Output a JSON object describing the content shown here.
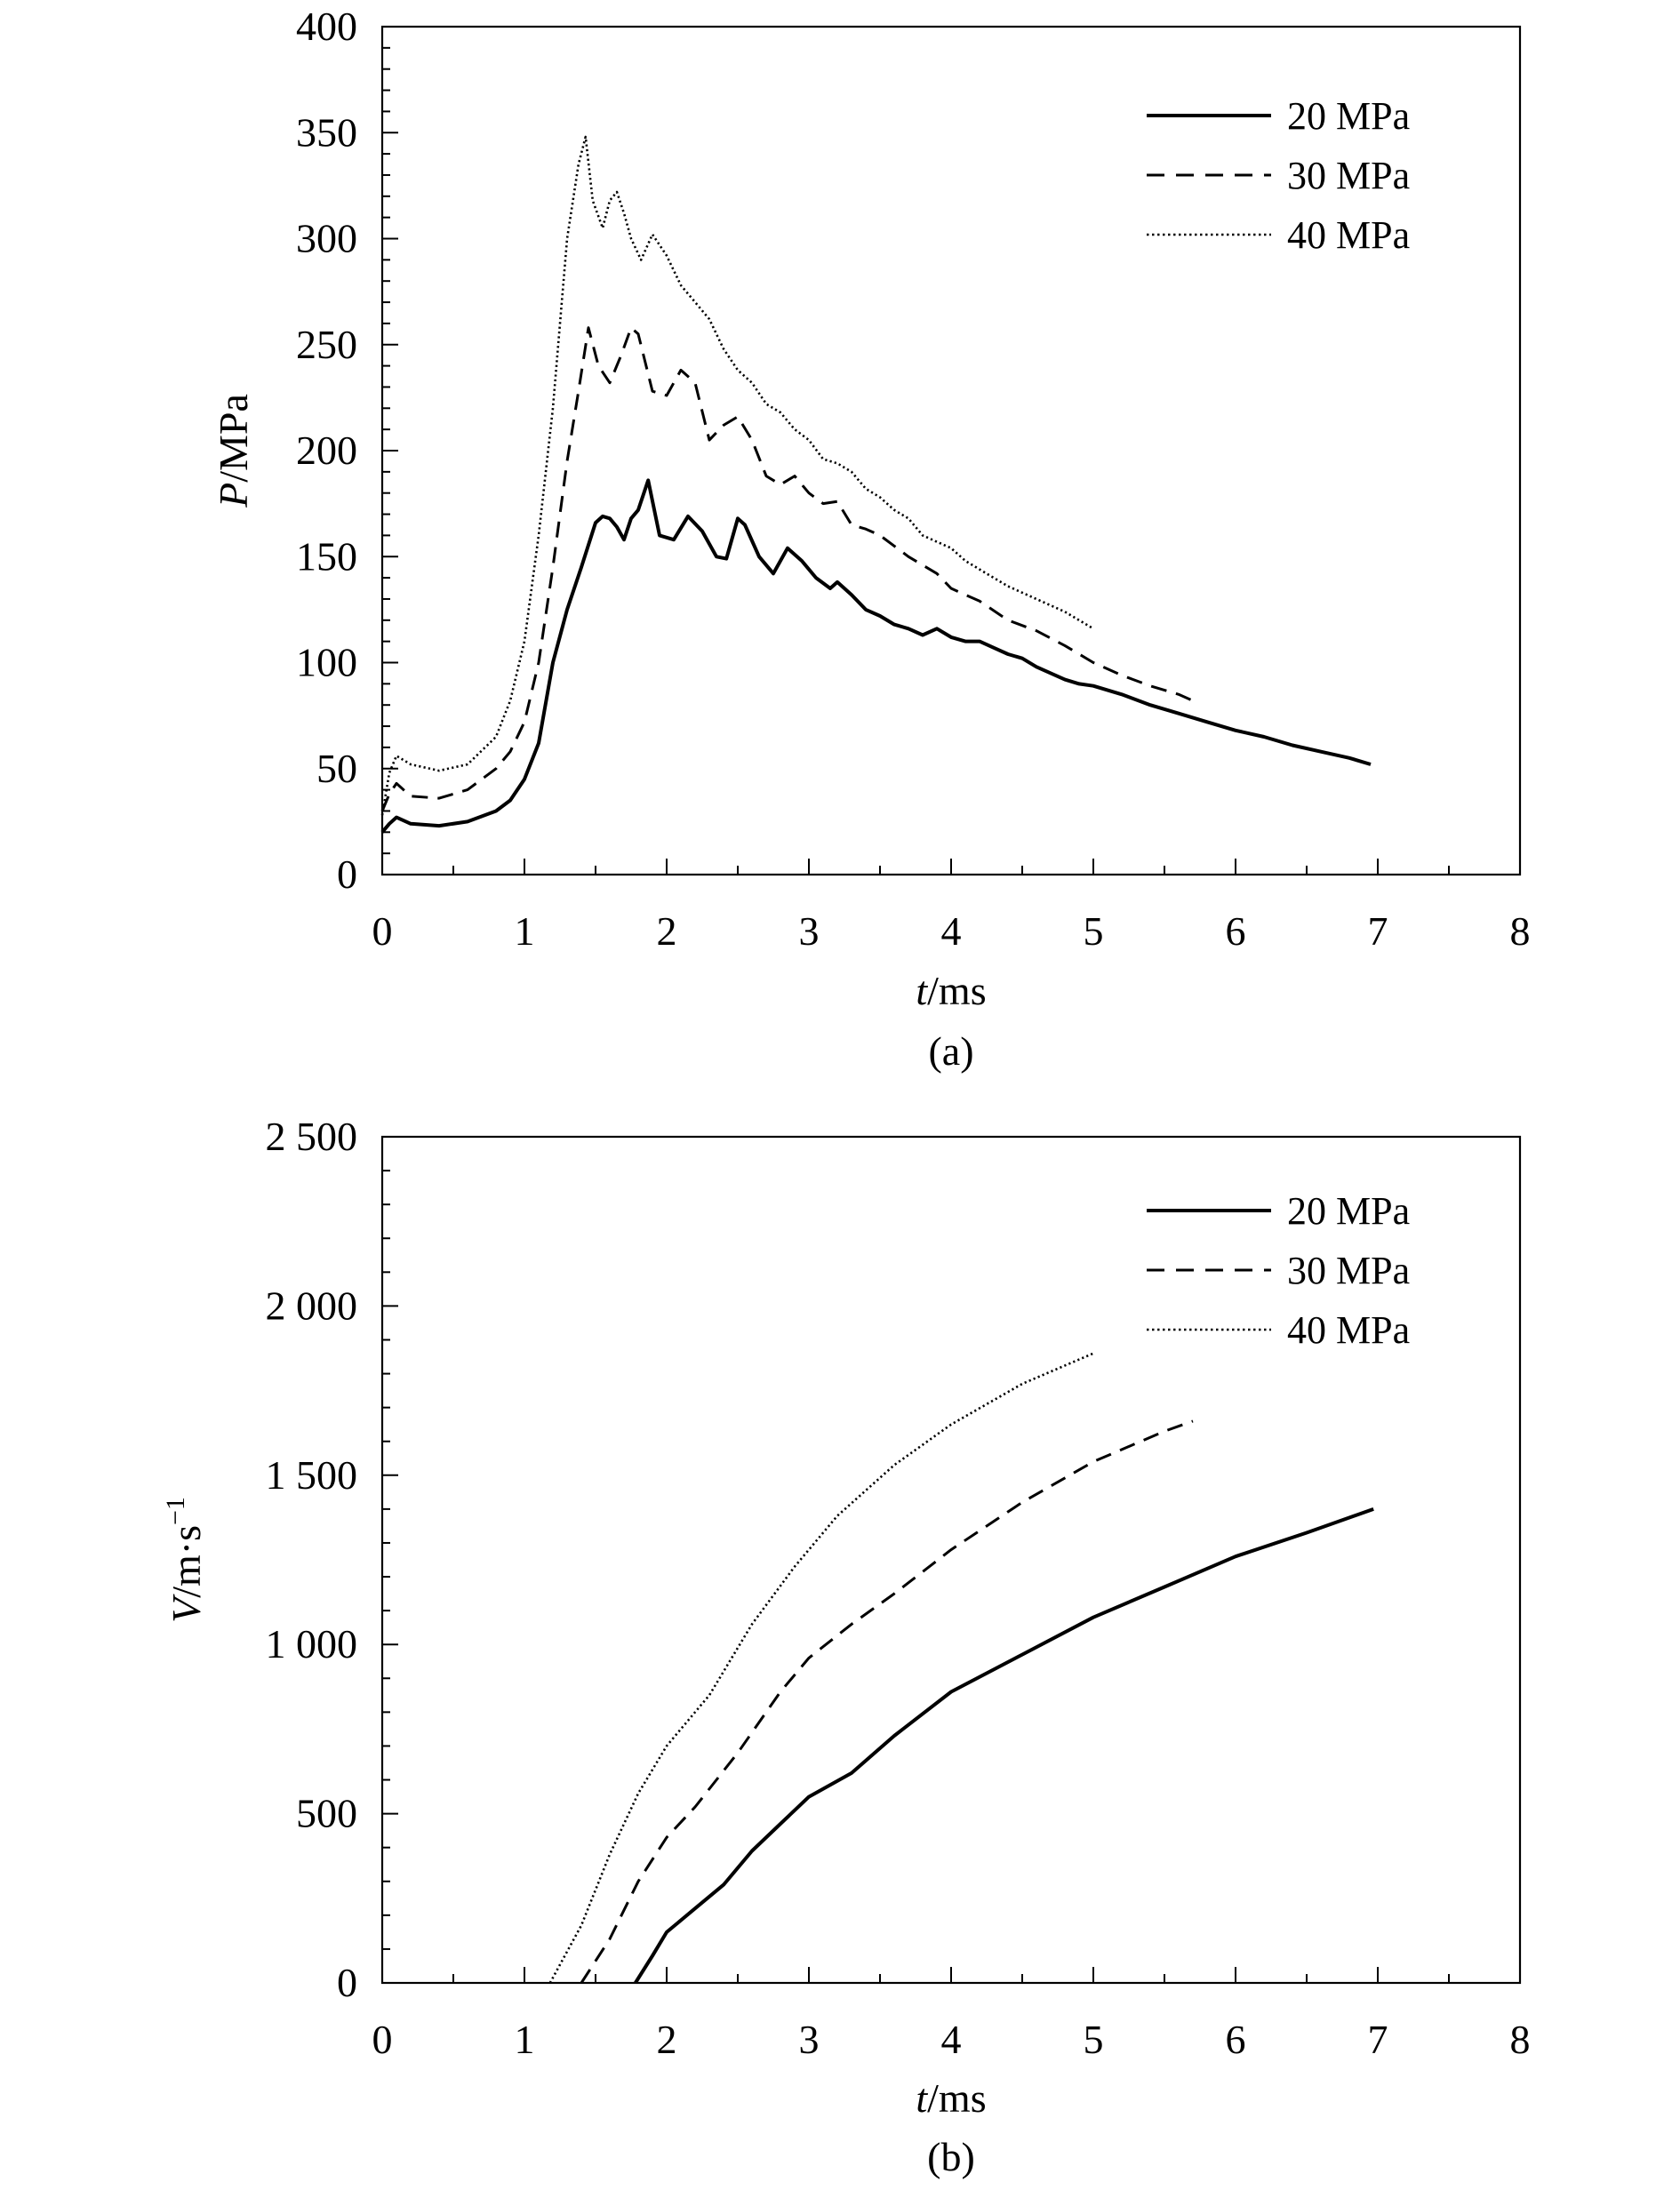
{
  "chart_data": [
    {
      "type": "line",
      "panel_label": "(a)",
      "title": "",
      "xlabel": {
        "var": "t",
        "unit": "/ms"
      },
      "ylabel": {
        "var": "P",
        "unit": "/MPa"
      },
      "xlim": [
        0,
        8
      ],
      "ylim": [
        0,
        400
      ],
      "xticks": [
        0,
        1,
        2,
        3,
        4,
        5,
        6,
        7,
        8
      ],
      "xtick_labels": [
        "0",
        "1",
        "2",
        "3",
        "4",
        "5",
        "6",
        "7",
        "8"
      ],
      "yticks": [
        0,
        50,
        100,
        150,
        200,
        250,
        300,
        350,
        400
      ],
      "ytick_labels": [
        "0",
        "50",
        "100",
        "150",
        "200",
        "250",
        "300",
        "350",
        "400"
      ],
      "grid": false,
      "legend_position": "top-right",
      "series": [
        {
          "name": "20 MPa",
          "style": "solid",
          "x": [
            0,
            0.05,
            0.1,
            0.2,
            0.4,
            0.6,
            0.8,
            0.9,
            1.0,
            1.1,
            1.2,
            1.3,
            1.4,
            1.5,
            1.55,
            1.6,
            1.65,
            1.7,
            1.75,
            1.8,
            1.87,
            1.95,
            2.05,
            2.15,
            2.25,
            2.35,
            2.42,
            2.5,
            2.55,
            2.65,
            2.75,
            2.85,
            2.95,
            3.05,
            3.15,
            3.2,
            3.3,
            3.4,
            3.5,
            3.6,
            3.7,
            3.8,
            3.9,
            4.0,
            4.1,
            4.2,
            4.3,
            4.4,
            4.5,
            4.6,
            4.7,
            4.8,
            4.9,
            5.0,
            5.2,
            5.4,
            5.6,
            5.8,
            6.0,
            6.2,
            6.4,
            6.6,
            6.8,
            6.95
          ],
          "y": [
            20,
            24,
            27,
            24,
            23,
            25,
            30,
            35,
            45,
            62,
            100,
            125,
            145,
            166,
            169,
            168,
            164,
            158,
            168,
            172,
            186,
            160,
            158,
            169,
            162,
            150,
            149,
            168,
            165,
            150,
            142,
            154,
            148,
            140,
            135,
            138,
            132,
            125,
            122,
            118,
            116,
            113,
            116,
            112,
            110,
            110,
            107,
            104,
            102,
            98,
            95,
            92,
            90,
            89,
            85,
            80,
            76,
            72,
            68,
            65,
            61,
            58,
            55,
            52
          ]
        },
        {
          "name": "30 MPa",
          "style": "dashed",
          "x": [
            0,
            0.05,
            0.1,
            0.2,
            0.4,
            0.6,
            0.8,
            0.9,
            1.0,
            1.1,
            1.2,
            1.3,
            1.38,
            1.45,
            1.52,
            1.6,
            1.68,
            1.75,
            1.8,
            1.9,
            2.0,
            2.1,
            2.2,
            2.3,
            2.4,
            2.5,
            2.6,
            2.7,
            2.8,
            2.9,
            3.0,
            3.1,
            3.2,
            3.3,
            3.4,
            3.5,
            3.6,
            3.7,
            3.8,
            3.9,
            4.0,
            4.1,
            4.2,
            4.4,
            4.6,
            4.8,
            5.0,
            5.2,
            5.4,
            5.6,
            5.7
          ],
          "y": [
            30,
            38,
            43,
            37,
            36,
            40,
            50,
            58,
            72,
            100,
            145,
            195,
            228,
            258,
            240,
            232,
            245,
            258,
            255,
            228,
            226,
            238,
            232,
            205,
            212,
            216,
            205,
            188,
            184,
            188,
            180,
            175,
            176,
            165,
            163,
            160,
            155,
            150,
            146,
            142,
            135,
            132,
            129,
            120,
            115,
            108,
            100,
            94,
            89,
            85,
            82
          ]
        },
        {
          "name": "40 MPa",
          "style": "dotted",
          "x": [
            0,
            0.05,
            0.1,
            0.2,
            0.4,
            0.6,
            0.8,
            0.9,
            1.0,
            1.1,
            1.2,
            1.3,
            1.38,
            1.43,
            1.48,
            1.55,
            1.6,
            1.65,
            1.7,
            1.75,
            1.82,
            1.9,
            2.0,
            2.1,
            2.2,
            2.3,
            2.4,
            2.5,
            2.6,
            2.7,
            2.8,
            2.9,
            3.0,
            3.1,
            3.2,
            3.3,
            3.4,
            3.5,
            3.6,
            3.7,
            3.8,
            3.9,
            4.0,
            4.1,
            4.2,
            4.3,
            4.4,
            4.6,
            4.8,
            5.0
          ],
          "y": [
            28,
            48,
            56,
            52,
            49,
            52,
            65,
            82,
            110,
            160,
            220,
            300,
            335,
            348,
            318,
            305,
            318,
            322,
            312,
            300,
            290,
            302,
            292,
            278,
            270,
            262,
            248,
            238,
            232,
            222,
            218,
            210,
            205,
            196,
            194,
            190,
            182,
            178,
            172,
            168,
            160,
            157,
            154,
            148,
            144,
            140,
            136,
            130,
            124,
            116
          ]
        }
      ]
    },
    {
      "type": "line",
      "panel_label": "(b)",
      "title": "",
      "xlabel": {
        "var": "t",
        "unit": "/ms"
      },
      "ylabel": {
        "var": "V",
        "unit": "/m·s",
        "sup": "−1"
      },
      "xlim": [
        0,
        8
      ],
      "ylim": [
        0,
        2500
      ],
      "xticks": [
        0,
        1,
        2,
        3,
        4,
        5,
        6,
        7,
        8
      ],
      "xtick_labels": [
        "0",
        "1",
        "2",
        "3",
        "4",
        "5",
        "6",
        "7",
        "8"
      ],
      "yticks": [
        0,
        500,
        1000,
        1500,
        2000,
        2500
      ],
      "ytick_labels": [
        "0",
        "500",
        "1 000",
        "1 500",
        "2 000",
        "2 500"
      ],
      "grid": false,
      "legend_position": "top-right",
      "series": [
        {
          "name": "20 MPa",
          "style": "solid",
          "x": [
            1.78,
            1.9,
            2.0,
            2.2,
            2.4,
            2.6,
            2.8,
            3.0,
            3.3,
            3.6,
            4.0,
            4.5,
            5.0,
            5.5,
            6.0,
            6.5,
            6.97
          ],
          "y": [
            0,
            80,
            150,
            220,
            290,
            390,
            470,
            550,
            620,
            730,
            860,
            970,
            1080,
            1170,
            1260,
            1330,
            1400
          ]
        },
        {
          "name": "30 MPa",
          "style": "dashed",
          "x": [
            1.4,
            1.6,
            1.8,
            2.0,
            2.2,
            2.5,
            2.8,
            3.0,
            3.3,
            3.6,
            4.0,
            4.5,
            5.0,
            5.5,
            5.7
          ],
          "y": [
            0,
            130,
            300,
            430,
            520,
            680,
            860,
            960,
            1060,
            1150,
            1280,
            1420,
            1540,
            1630,
            1660
          ]
        },
        {
          "name": "40 MPa",
          "style": "dotted",
          "x": [
            1.18,
            1.4,
            1.6,
            1.8,
            2.0,
            2.3,
            2.6,
            2.9,
            3.2,
            3.6,
            4.0,
            4.5,
            5.0
          ],
          "y": [
            0,
            170,
            380,
            560,
            700,
            850,
            1060,
            1230,
            1380,
            1530,
            1650,
            1770,
            1860
          ]
        }
      ]
    }
  ]
}
